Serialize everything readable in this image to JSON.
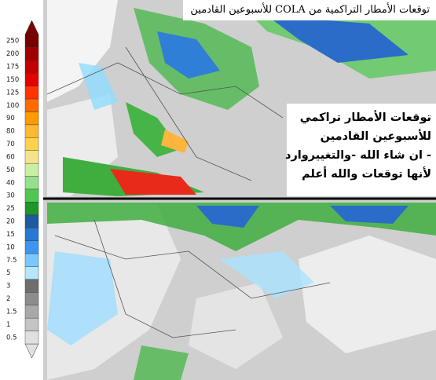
{
  "title": "توقعات الأمطار التراكمية من COLA للأسبوعين القادمين",
  "note": [
    "توقعات الأمطار تراكمي",
    "للأسبوعين القادمين",
    "- ان شاء الله -والتغييروارد",
    "لأنها توقعات والله أعلم"
  ],
  "colorbar": {
    "labels": [
      250,
      200,
      175,
      150,
      125,
      100,
      90,
      80,
      70,
      60,
      50,
      40,
      30,
      25,
      20,
      15,
      10,
      7.5,
      5,
      3,
      2,
      1.5,
      1,
      0.5
    ],
    "colors": [
      "#7a0000",
      "#a00000",
      "#c40000",
      "#e60000",
      "#ff3200",
      "#ff6a00",
      "#ff9a00",
      "#ffb830",
      "#ffd24a",
      "#f3e48c",
      "#c8f0a0",
      "#96e08c",
      "#50c850",
      "#1e9628",
      "#1e5aa0",
      "#2878d2",
      "#3c96f0",
      "#78c8ff",
      "#b4e6ff",
      "#6e6e6e",
      "#8c8c8c",
      "#a8a8a8",
      "#c4c4c4",
      "#e0e0e0"
    ],
    "extend_top_color": "#7a0000",
    "extend_bottom_color": "#e0e0e0"
  }
}
